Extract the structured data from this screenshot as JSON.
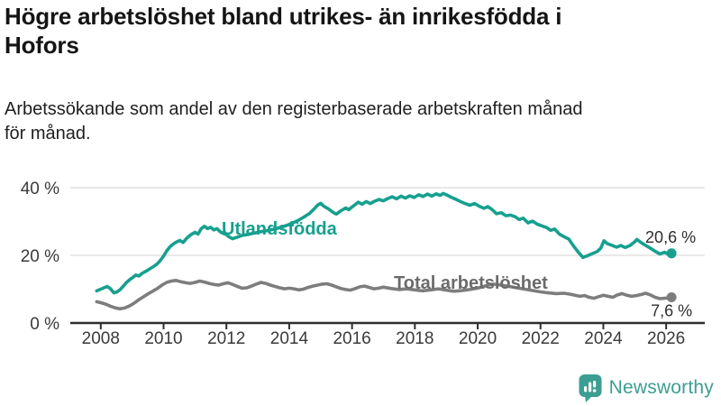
{
  "title": "Högre arbetslöshet bland utrikes- än inrikesfödda i\nHofors",
  "subtitle": "Arbetssökande som andel av den registerbaserade arbetskraften månad\nför månad.",
  "branding": {
    "logo_text": "Newsworthy",
    "logo_icon": "speech-bubble-bar-chart-icon",
    "logo_color": "#3c9e92"
  },
  "chart_data": {
    "type": "line",
    "unit": "%",
    "x_ticks": [
      2008,
      2010,
      2012,
      2014,
      2016,
      2018,
      2020,
      2022,
      2024,
      2026
    ],
    "y_ticks": [
      0,
      20,
      40
    ],
    "y_tick_suffix": " %",
    "ylim": [
      0,
      40
    ],
    "xlim": [
      2007.03,
      2027.23
    ],
    "grid": "horizontal",
    "legend_position": "inline-labels",
    "colors": {
      "accent_teal": "#17a08f",
      "line_gray": "#7d7d7d",
      "grid_gray": "#dcdcdc",
      "axis_dark": "#2e2e2e"
    },
    "series": [
      {
        "name": "Utlandsfödda",
        "color": "#17a08f",
        "label_color": "#17a08f",
        "end_label": "20,6 %",
        "end_value": 20.6,
        "points": [
          [
            2007.87,
            9.5
          ],
          [
            2008.0,
            10.0
          ],
          [
            2008.1,
            10.4
          ],
          [
            2008.2,
            10.8
          ],
          [
            2008.3,
            10.2
          ],
          [
            2008.42,
            8.9
          ],
          [
            2008.52,
            9.2
          ],
          [
            2008.62,
            9.9
          ],
          [
            2008.72,
            10.9
          ],
          [
            2008.82,
            12.0
          ],
          [
            2008.92,
            12.8
          ],
          [
            2009.02,
            13.5
          ],
          [
            2009.12,
            14.2
          ],
          [
            2009.22,
            13.9
          ],
          [
            2009.32,
            14.7
          ],
          [
            2009.44,
            15.3
          ],
          [
            2009.56,
            16.0
          ],
          [
            2009.68,
            16.7
          ],
          [
            2009.8,
            17.5
          ],
          [
            2009.9,
            18.5
          ],
          [
            2010.0,
            19.8
          ],
          [
            2010.1,
            21.3
          ],
          [
            2010.2,
            22.5
          ],
          [
            2010.3,
            23.3
          ],
          [
            2010.42,
            24.0
          ],
          [
            2010.52,
            24.4
          ],
          [
            2010.62,
            23.8
          ],
          [
            2010.74,
            25.1
          ],
          [
            2010.87,
            26.1
          ],
          [
            2011.0,
            26.8
          ],
          [
            2011.1,
            26.3
          ],
          [
            2011.2,
            27.9
          ],
          [
            2011.3,
            28.6
          ],
          [
            2011.4,
            27.9
          ],
          [
            2011.5,
            28.3
          ],
          [
            2011.6,
            27.5
          ],
          [
            2011.7,
            27.9
          ],
          [
            2011.8,
            27.0
          ],
          [
            2011.9,
            26.5
          ],
          [
            2012.0,
            26.1
          ],
          [
            2012.1,
            25.4
          ],
          [
            2012.2,
            24.9
          ],
          [
            2012.35,
            25.4
          ],
          [
            2012.5,
            25.9
          ],
          [
            2012.7,
            26.2
          ],
          [
            2012.9,
            26.6
          ],
          [
            2013.1,
            27.0
          ],
          [
            2013.3,
            27.3
          ],
          [
            2013.5,
            27.7
          ],
          [
            2013.7,
            28.2
          ],
          [
            2013.9,
            28.8
          ],
          [
            2014.1,
            29.5
          ],
          [
            2014.3,
            30.4
          ],
          [
            2014.5,
            31.5
          ],
          [
            2014.65,
            32.4
          ],
          [
            2014.8,
            33.8
          ],
          [
            2014.9,
            34.8
          ],
          [
            2015.0,
            35.4
          ],
          [
            2015.1,
            34.5
          ],
          [
            2015.25,
            33.7
          ],
          [
            2015.4,
            32.7
          ],
          [
            2015.5,
            32.2
          ],
          [
            2015.65,
            33.2
          ],
          [
            2015.8,
            34.0
          ],
          [
            2015.9,
            33.5
          ],
          [
            2016.0,
            34.3
          ],
          [
            2016.1,
            35.0
          ],
          [
            2016.2,
            35.7
          ],
          [
            2016.32,
            35.1
          ],
          [
            2016.45,
            35.9
          ],
          [
            2016.58,
            35.3
          ],
          [
            2016.72,
            36.0
          ],
          [
            2016.86,
            36.5
          ],
          [
            2017.0,
            36.1
          ],
          [
            2017.14,
            36.8
          ],
          [
            2017.28,
            37.3
          ],
          [
            2017.42,
            36.7
          ],
          [
            2017.56,
            37.5
          ],
          [
            2017.7,
            36.9
          ],
          [
            2017.84,
            37.6
          ],
          [
            2017.98,
            37.1
          ],
          [
            2018.12,
            37.9
          ],
          [
            2018.26,
            37.4
          ],
          [
            2018.4,
            38.1
          ],
          [
            2018.54,
            37.5
          ],
          [
            2018.68,
            38.2
          ],
          [
            2018.8,
            37.7
          ],
          [
            2018.9,
            38.3
          ],
          [
            2019.0,
            37.9
          ],
          [
            2019.15,
            37.2
          ],
          [
            2019.3,
            36.6
          ],
          [
            2019.45,
            35.9
          ],
          [
            2019.6,
            35.3
          ],
          [
            2019.75,
            34.8
          ],
          [
            2019.9,
            35.3
          ],
          [
            2020.05,
            34.5
          ],
          [
            2020.2,
            33.9
          ],
          [
            2020.32,
            34.4
          ],
          [
            2020.45,
            33.6
          ],
          [
            2020.6,
            32.3
          ],
          [
            2020.75,
            32.6
          ],
          [
            2020.9,
            31.7
          ],
          [
            2021.05,
            31.9
          ],
          [
            2021.2,
            31.4
          ],
          [
            2021.32,
            30.6
          ],
          [
            2021.45,
            31.0
          ],
          [
            2021.6,
            29.6
          ],
          [
            2021.75,
            30.1
          ],
          [
            2021.9,
            29.2
          ],
          [
            2022.05,
            28.7
          ],
          [
            2022.2,
            28.2
          ],
          [
            2022.32,
            27.4
          ],
          [
            2022.45,
            27.8
          ],
          [
            2022.6,
            26.3
          ],
          [
            2022.75,
            25.5
          ],
          [
            2022.9,
            24.8
          ],
          [
            2023.05,
            22.8
          ],
          [
            2023.2,
            21.0
          ],
          [
            2023.35,
            19.4
          ],
          [
            2023.5,
            19.9
          ],
          [
            2023.65,
            20.5
          ],
          [
            2023.8,
            21.1
          ],
          [
            2023.92,
            22.1
          ],
          [
            2024.02,
            24.3
          ],
          [
            2024.12,
            23.5
          ],
          [
            2024.27,
            23.0
          ],
          [
            2024.42,
            22.4
          ],
          [
            2024.56,
            22.9
          ],
          [
            2024.7,
            22.3
          ],
          [
            2024.85,
            22.9
          ],
          [
            2025.0,
            24.0
          ],
          [
            2025.07,
            24.7
          ],
          [
            2025.2,
            23.8
          ],
          [
            2025.35,
            22.9
          ],
          [
            2025.5,
            22.1
          ],
          [
            2025.65,
            21.2
          ],
          [
            2025.8,
            20.4
          ],
          [
            2025.95,
            20.9
          ],
          [
            2026.08,
            20.3
          ],
          [
            2026.17,
            20.6
          ]
        ]
      },
      {
        "name": "Total arbetslöshet",
        "color": "#7d7d7d",
        "label_color": "#6b6b6b",
        "end_label": "7,6 %",
        "end_value": 7.6,
        "points": [
          [
            2007.87,
            6.3
          ],
          [
            2008.0,
            6.0
          ],
          [
            2008.15,
            5.6
          ],
          [
            2008.3,
            5.0
          ],
          [
            2008.45,
            4.5
          ],
          [
            2008.6,
            4.2
          ],
          [
            2008.75,
            4.4
          ],
          [
            2008.9,
            5.0
          ],
          [
            2009.05,
            5.8
          ],
          [
            2009.2,
            6.8
          ],
          [
            2009.35,
            7.7
          ],
          [
            2009.5,
            8.6
          ],
          [
            2009.65,
            9.4
          ],
          [
            2009.8,
            10.2
          ],
          [
            2009.95,
            11.2
          ],
          [
            2010.1,
            12.0
          ],
          [
            2010.25,
            12.4
          ],
          [
            2010.4,
            12.6
          ],
          [
            2010.55,
            12.2
          ],
          [
            2010.7,
            11.9
          ],
          [
            2010.85,
            11.7
          ],
          [
            2011.0,
            12.0
          ],
          [
            2011.15,
            12.4
          ],
          [
            2011.3,
            12.1
          ],
          [
            2011.45,
            11.7
          ],
          [
            2011.6,
            11.4
          ],
          [
            2011.75,
            11.2
          ],
          [
            2011.9,
            11.6
          ],
          [
            2012.05,
            11.9
          ],
          [
            2012.2,
            11.4
          ],
          [
            2012.35,
            10.8
          ],
          [
            2012.5,
            10.3
          ],
          [
            2012.65,
            10.4
          ],
          [
            2012.8,
            10.9
          ],
          [
            2012.95,
            11.5
          ],
          [
            2013.1,
            12.0
          ],
          [
            2013.25,
            11.7
          ],
          [
            2013.4,
            11.2
          ],
          [
            2013.55,
            10.8
          ],
          [
            2013.7,
            10.4
          ],
          [
            2013.85,
            10.1
          ],
          [
            2014.0,
            10.3
          ],
          [
            2014.15,
            10.1
          ],
          [
            2014.3,
            9.8
          ],
          [
            2014.45,
            10.0
          ],
          [
            2014.6,
            10.5
          ],
          [
            2014.75,
            10.9
          ],
          [
            2014.9,
            11.2
          ],
          [
            2015.05,
            11.5
          ],
          [
            2015.2,
            11.6
          ],
          [
            2015.35,
            11.2
          ],
          [
            2015.5,
            10.7
          ],
          [
            2015.65,
            10.2
          ],
          [
            2015.8,
            9.9
          ],
          [
            2015.95,
            9.7
          ],
          [
            2016.1,
            10.2
          ],
          [
            2016.25,
            10.7
          ],
          [
            2016.4,
            10.9
          ],
          [
            2016.55,
            10.5
          ],
          [
            2016.7,
            10.1
          ],
          [
            2016.85,
            10.3
          ],
          [
            2017.0,
            10.6
          ],
          [
            2017.25,
            10.2
          ],
          [
            2017.5,
            9.9
          ],
          [
            2017.75,
            10.1
          ],
          [
            2018.0,
            9.8
          ],
          [
            2018.25,
            9.5
          ],
          [
            2018.5,
            9.8
          ],
          [
            2018.75,
            10.1
          ],
          [
            2019.0,
            9.7
          ],
          [
            2019.25,
            9.4
          ],
          [
            2019.5,
            9.6
          ],
          [
            2019.75,
            9.9
          ],
          [
            2020.0,
            10.3
          ],
          [
            2020.25,
            11.0
          ],
          [
            2020.5,
            11.5
          ],
          [
            2020.75,
            11.2
          ],
          [
            2021.0,
            10.8
          ],
          [
            2021.25,
            10.4
          ],
          [
            2021.5,
            10.0
          ],
          [
            2021.75,
            9.6
          ],
          [
            2022.0,
            9.2
          ],
          [
            2022.25,
            8.9
          ],
          [
            2022.5,
            8.7
          ],
          [
            2022.75,
            8.8
          ],
          [
            2022.95,
            8.5
          ],
          [
            2023.1,
            8.2
          ],
          [
            2023.25,
            7.9
          ],
          [
            2023.4,
            8.1
          ],
          [
            2023.55,
            7.6
          ],
          [
            2023.7,
            7.3
          ],
          [
            2023.85,
            7.8
          ],
          [
            2024.0,
            8.2
          ],
          [
            2024.15,
            7.9
          ],
          [
            2024.3,
            7.6
          ],
          [
            2024.45,
            8.3
          ],
          [
            2024.6,
            8.7
          ],
          [
            2024.75,
            8.2
          ],
          [
            2024.9,
            7.9
          ],
          [
            2025.05,
            8.1
          ],
          [
            2025.2,
            8.4
          ],
          [
            2025.35,
            8.8
          ],
          [
            2025.5,
            8.3
          ],
          [
            2025.65,
            7.6
          ],
          [
            2025.8,
            7.2
          ],
          [
            2025.95,
            7.3
          ],
          [
            2026.1,
            7.5
          ],
          [
            2026.17,
            7.6
          ]
        ]
      }
    ]
  }
}
